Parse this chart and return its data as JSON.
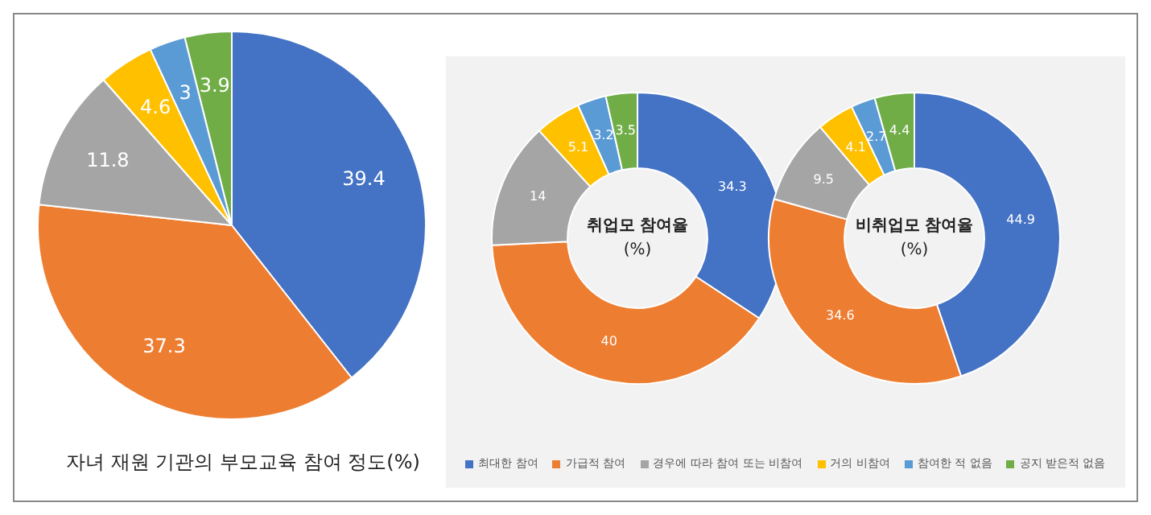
{
  "chart_data": [
    {
      "type": "pie",
      "title": "자녀 재원 기관의 부모교육 참여 정도(%)",
      "categories": [
        null,
        null,
        null,
        null,
        null,
        null
      ],
      "values": [
        39.4,
        37.3,
        11.8,
        4.6,
        3,
        3.9
      ],
      "colors": [
        "#4472c4",
        "#ed7d31",
        "#a5a5a5",
        "#ffc000",
        "#5b9bd5",
        "#70ad47"
      ],
      "data_labels": true,
      "legend": false
    },
    {
      "type": "donut",
      "title": "취업모 참여율\n(%)",
      "categories": [
        "최대한 참여",
        "가급적 참여",
        "경우에 따라 참여 또는 비참여",
        "거의 비참여",
        "참여한 적 없음",
        "공지 받은적 없음"
      ],
      "values": [
        34.3,
        40,
        14,
        5.1,
        3.2,
        3.5
      ],
      "colors": [
        "#4472c4",
        "#ed7d31",
        "#a5a5a5",
        "#ffc000",
        "#5b9bd5",
        "#70ad47"
      ],
      "data_labels": true,
      "legend": "bottom"
    },
    {
      "type": "donut",
      "title": "비취업모 참여율\n(%)",
      "categories": [
        null,
        null,
        null,
        null,
        null,
        null
      ],
      "values": [
        44.9,
        34.6,
        9.5,
        4.1,
        2.7,
        4.4
      ],
      "colors": [
        "#4472c4",
        "#ed7d31",
        "#a5a5a5",
        "#ffc000",
        "#5b9bd5",
        "#70ad47"
      ],
      "data_labels": true,
      "legend": false
    }
  ]
}
